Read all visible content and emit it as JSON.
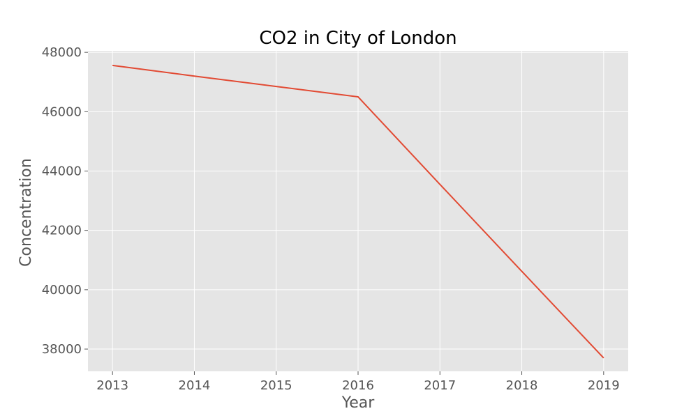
{
  "chart_data": {
    "type": "line",
    "title": "CO2 in City of London",
    "xlabel": "Year",
    "ylabel": "Concentration",
    "x": [
      2013,
      2014,
      2015,
      2016,
      2017,
      2018,
      2019
    ],
    "x_ticks": [
      "2013",
      "2014",
      "2015",
      "2016",
      "2017",
      "2018",
      "2019"
    ],
    "y_ticks": [
      "38000",
      "40000",
      "42000",
      "44000",
      "46000",
      "48000"
    ],
    "xlim": [
      2012.7,
      2019.3
    ],
    "ylim": [
      37250,
      48050
    ],
    "grid": true,
    "series": [
      {
        "values": [
          47560,
          47200,
          46850,
          46500,
          43550,
          40620,
          37700
        ],
        "color": "#E24A33"
      }
    ]
  },
  "colors": {
    "plot_background": "#E5E5E5",
    "grid": "#FFFFFF",
    "tick_text": "#555555"
  }
}
